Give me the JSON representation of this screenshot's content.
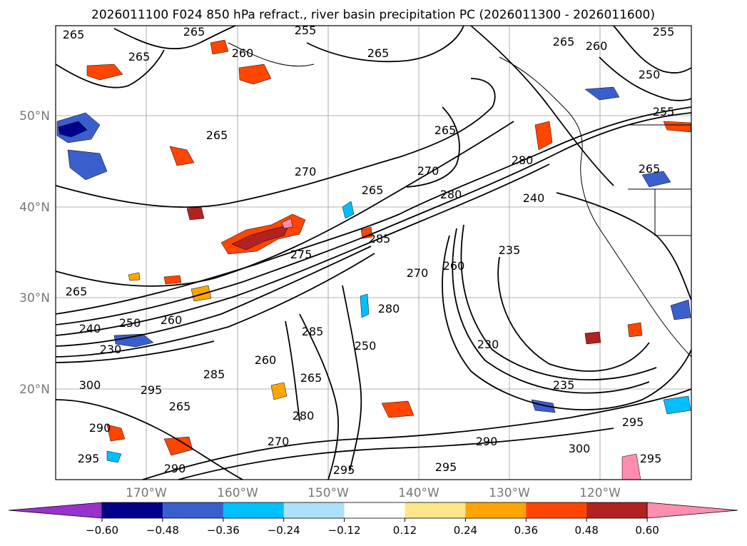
{
  "title": "2026011100 F024 850 hPa refract., river basin precipitation PC (2026011300 - 2026011600)",
  "map": {
    "lat_labels": [
      "50°N",
      "40°N",
      "30°N",
      "20°N"
    ],
    "lon_labels": [
      "170°W",
      "160°W",
      "150°W",
      "140°W",
      "130°W",
      "120°W"
    ],
    "contour_labels": [
      {
        "text": "265"
      },
      {
        "text": "265"
      },
      {
        "text": "265"
      },
      {
        "text": "260"
      },
      {
        "text": "255"
      },
      {
        "text": "265"
      },
      {
        "text": "265"
      },
      {
        "text": "260"
      },
      {
        "text": "255"
      },
      {
        "text": "250"
      },
      {
        "text": "255"
      },
      {
        "text": "265"
      },
      {
        "text": "265"
      },
      {
        "text": "270"
      },
      {
        "text": "270"
      },
      {
        "text": "265"
      },
      {
        "text": "280"
      },
      {
        "text": "280"
      },
      {
        "text": "240"
      },
      {
        "text": "235"
      },
      {
        "text": "275"
      },
      {
        "text": "265"
      },
      {
        "text": "240"
      },
      {
        "text": "250"
      },
      {
        "text": "230"
      },
      {
        "text": "260"
      },
      {
        "text": "285"
      },
      {
        "text": "300"
      },
      {
        "text": "295"
      },
      {
        "text": "265"
      },
      {
        "text": "290"
      },
      {
        "text": "295"
      },
      {
        "text": "270"
      },
      {
        "text": "290"
      },
      {
        "text": "295"
      },
      {
        "text": "280"
      },
      {
        "text": "285"
      },
      {
        "text": "265"
      },
      {
        "text": "260"
      },
      {
        "text": "250"
      },
      {
        "text": "290"
      },
      {
        "text": "295"
      },
      {
        "text": "235"
      },
      {
        "text": "300"
      },
      {
        "text": "295"
      },
      {
        "text": "295"
      },
      {
        "text": "230"
      },
      {
        "text": "270"
      },
      {
        "text": "260"
      },
      {
        "text": "285"
      },
      {
        "text": "265"
      },
      {
        "text": "280"
      }
    ]
  },
  "colorbar": {
    "tick_labels": [
      "−0.60",
      "−0.48",
      "−0.36",
      "−0.24",
      "−0.12",
      "0.12",
      "0.24",
      "0.36",
      "0.48",
      "0.60"
    ],
    "colors": [
      "#9932CC",
      "#00008B",
      "#3A5FCD",
      "#00BFFF",
      "#ADE1FA",
      "#FFFFFF",
      "#FDE68A",
      "#FFA500",
      "#FF4500",
      "#B22222",
      "#FF8DAF"
    ]
  },
  "colors": {
    "contour": "#000000",
    "grid": "#888888",
    "axis_label": "#777777",
    "title": "#000000"
  }
}
